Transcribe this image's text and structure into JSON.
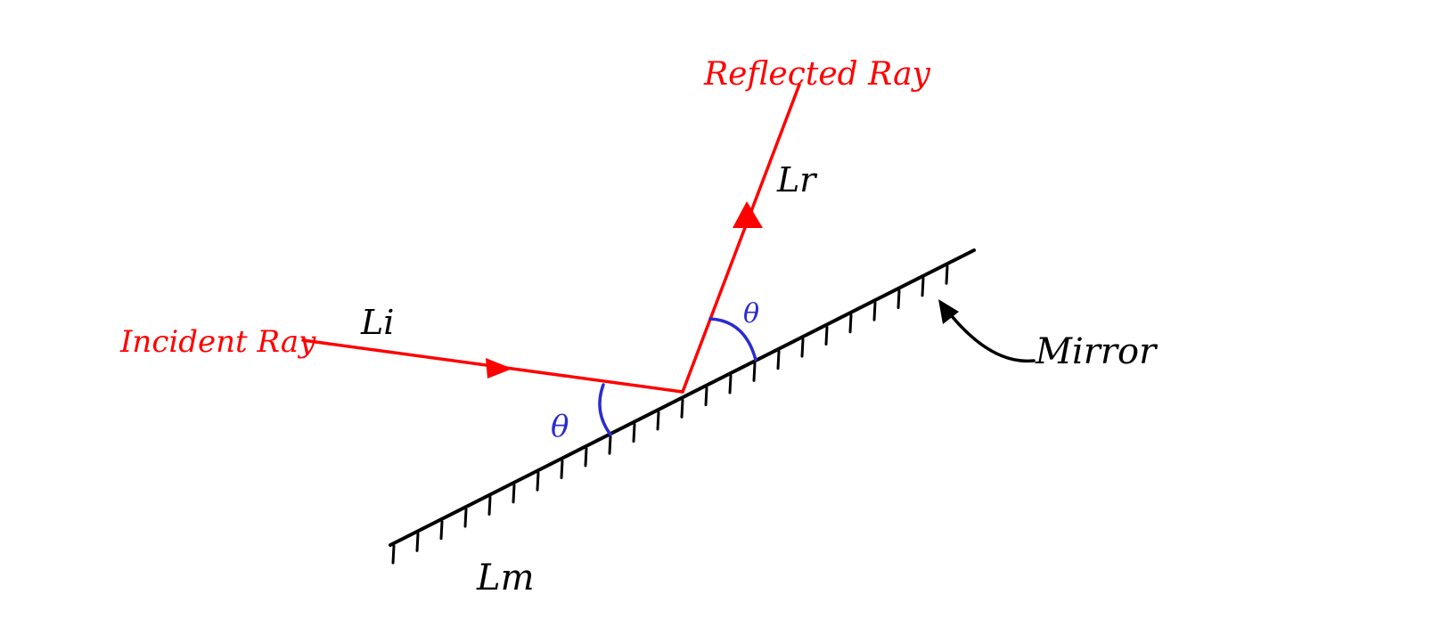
{
  "labels": {
    "reflected_ray": "Reflected Ray",
    "incident_ray": "Incident Ray",
    "incident_line": "Li",
    "reflected_line": "Lr",
    "mirror_line": "Lm",
    "mirror": "Mirror",
    "angle_incident": "θ",
    "angle_reflected": "θ"
  },
  "colors": {
    "ray": "#ff0000",
    "mirror": "#000000",
    "angle": "#2b2bd0",
    "text": "#000000"
  }
}
